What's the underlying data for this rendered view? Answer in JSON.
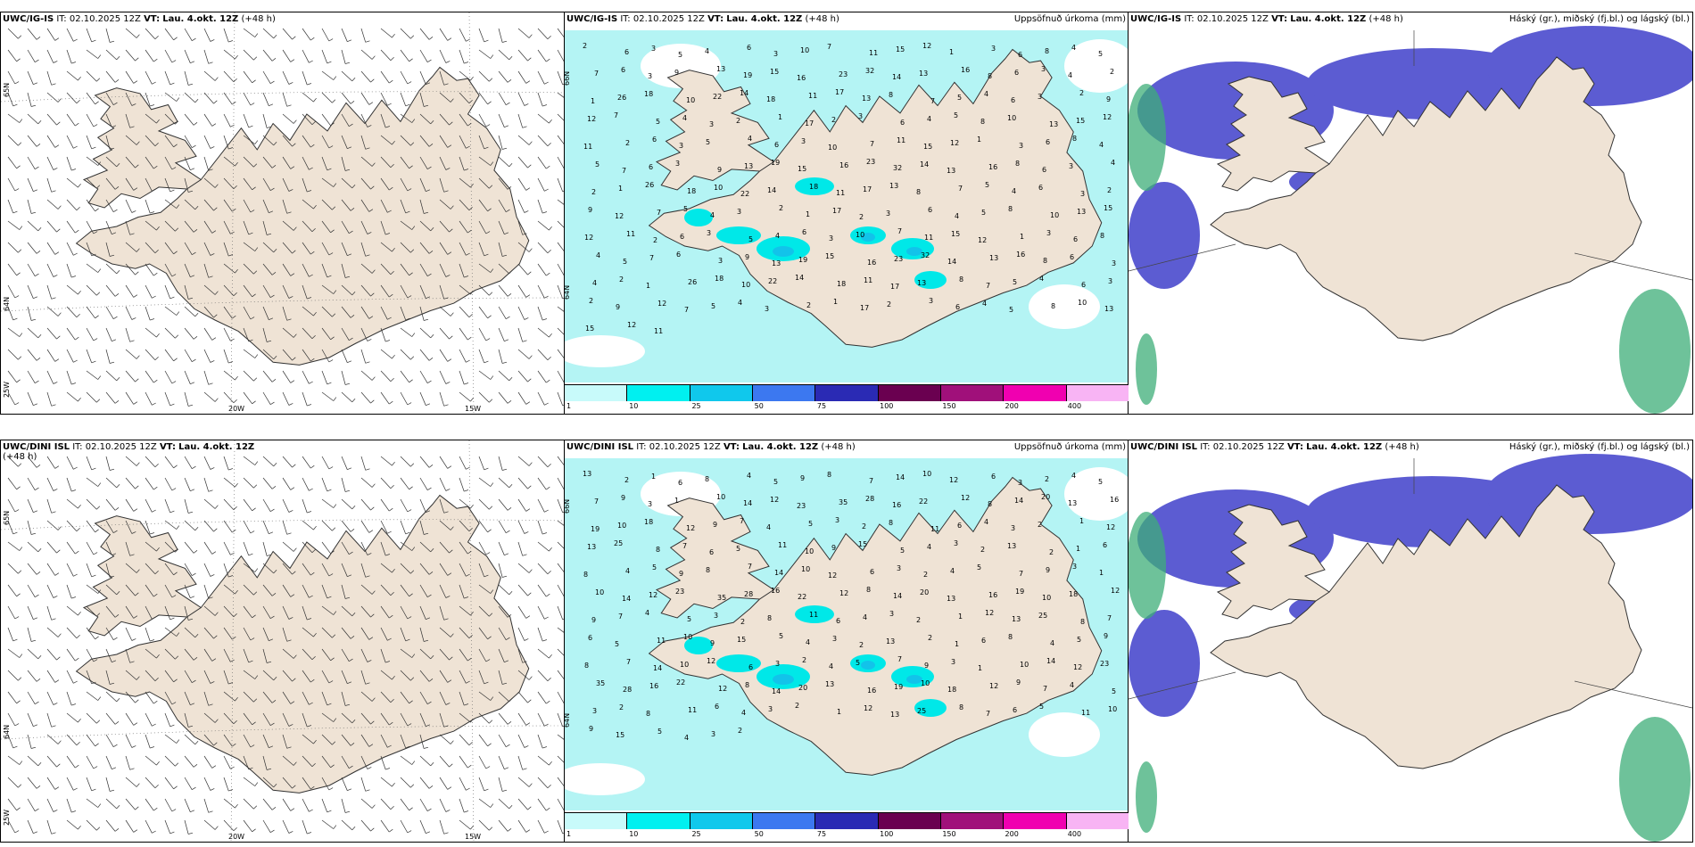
{
  "colors": {
    "land": "#efe3d5",
    "precip_light": "#b4f4f4",
    "precip_mid": "#00e8e8",
    "precip_heavy": "#12c3ea",
    "cloud_high": "#5c5cd2",
    "cloud_mid": "#36b3e8",
    "cloud_low": "#3dae78",
    "outline": "#333333"
  },
  "rows": [
    {
      "model": "UWC/IG-IS",
      "panels": [
        {
          "type": "wind",
          "model": "UWC/IG-IS",
          "it_label": "IT:",
          "it_value": "02.10.2025 12Z",
          "vt_label": "VT:",
          "vt_value": "Lau. 4.okt. 12Z",
          "lead": "(+48 h)",
          "lat_labels": [
            "65N",
            "64N",
            "25W"
          ],
          "lon_labels": [
            "20W",
            "15W"
          ]
        },
        {
          "type": "precip",
          "model": "UWC/IG-IS",
          "it_label": "IT:",
          "it_value": "02.10.2025 12Z",
          "vt_label": "VT:",
          "vt_value": "Lau. 4.okt. 12Z",
          "lead": "(+48 h)",
          "field": "Uppsöfnuð úrkoma (mm)",
          "lat_labels": [
            "66N",
            "64N"
          ]
        },
        {
          "type": "cloud",
          "model": "UWC/IG-IS",
          "it_label": "IT:",
          "it_value": "02.10.2025 12Z",
          "vt_label": "VT:",
          "vt_value": "Lau. 4.okt. 12Z",
          "lead": "(+48 h)",
          "field": "Háský (gr.), miðský (fj.bl.) og lágský (bl.)"
        }
      ]
    },
    {
      "model": "UWC/DINI ISL",
      "panels": [
        {
          "type": "wind",
          "model": "UWC/DINI ISL",
          "it_label": "IT:",
          "it_value": "02.10.2025 12Z",
          "vt_label": "VT:",
          "vt_value": "Lau. 4.okt. 12Z",
          "lead": "(+48 h)",
          "lat_labels": [
            "65N",
            "64N",
            "25W"
          ],
          "lon_labels": [
            "20W",
            "15W"
          ]
        },
        {
          "type": "precip",
          "model": "UWC/DINI ISL",
          "it_label": "IT:",
          "it_value": "02.10.2025 12Z",
          "vt_label": "VT:",
          "vt_value": "Lau. 4.okt. 12Z",
          "lead": "(+48 h)",
          "field": "Uppsöfnuð úrkoma (mm)",
          "lat_labels": [
            "66N",
            "64N"
          ]
        },
        {
          "type": "cloud",
          "model": "UWC/DINI ISL",
          "it_label": "IT:",
          "it_value": "02.10.2025 12Z",
          "vt_label": "VT:",
          "vt_value": "Lau. 4.okt. 12Z",
          "lead": "(+48 h)",
          "field": "Háský (gr.), miðský (fj.bl.) og lágský (bl.)"
        }
      ]
    }
  ],
  "colorbar": {
    "ticks": [
      "1",
      "10",
      "25",
      "50",
      "75",
      "100",
      "150",
      "200",
      "400"
    ],
    "colors": [
      "#c8fafa",
      "#00f0f0",
      "#10c8ec",
      "#3c78f0",
      "#2a2ab4",
      "#6a0050",
      "#a0107a",
      "#f000b0",
      "#f8b4f4"
    ]
  },
  "precip_values": {
    "top": [
      "2",
      "6",
      "3",
      "5",
      "4",
      "6",
      "3",
      "10",
      "7",
      "11",
      "15",
      "12",
      "1",
      "3",
      "6",
      "8",
      "4",
      "5",
      "7",
      "6",
      "3",
      "9",
      "13",
      "19",
      "15",
      "16",
      "23",
      "32",
      "14",
      "13",
      "16",
      "8",
      "6",
      "3",
      "4",
      "2",
      "1",
      "26",
      "18",
      "10",
      "22",
      "14",
      "18",
      "11",
      "17",
      "13",
      "8",
      "7",
      "5",
      "4",
      "6",
      "3",
      "2",
      "9",
      "12",
      "7",
      "5",
      "4",
      "3",
      "2",
      "1",
      "17",
      "2",
      "3",
      "6",
      "4",
      "5",
      "8",
      "10",
      "13",
      "15",
      "12",
      "11"
    ],
    "bottom": [
      "13",
      "2",
      "1",
      "6",
      "8",
      "4",
      "5",
      "9",
      "8",
      "7",
      "14",
      "10",
      "12",
      "6",
      "3",
      "2",
      "4",
      "5",
      "7",
      "9",
      "3",
      "1",
      "10",
      "14",
      "12",
      "23",
      "35",
      "28",
      "16",
      "22",
      "12",
      "8",
      "14",
      "20",
      "13",
      "16",
      "19",
      "10",
      "18",
      "12",
      "9",
      "7",
      "4",
      "5",
      "3",
      "2",
      "8",
      "11",
      "6",
      "4",
      "3",
      "2",
      "1",
      "12",
      "13",
      "25",
      "8",
      "7",
      "6",
      "5",
      "11",
      "10",
      "9",
      "15",
      "5",
      "4",
      "3",
      "2"
    ]
  }
}
